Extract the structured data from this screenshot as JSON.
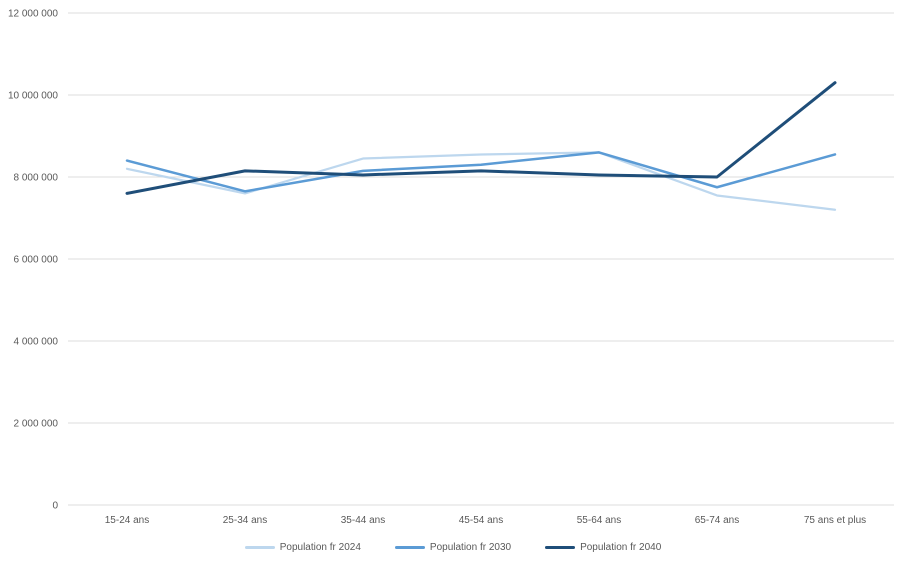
{
  "chart_data": {
    "type": "line",
    "title": "",
    "xlabel": "",
    "ylabel": "",
    "categories": [
      "15-24 ans",
      "25-34 ans",
      "35-44 ans",
      "45-54 ans",
      "55-64 ans",
      "65-74 ans",
      "75 ans et plus"
    ],
    "series": [
      {
        "name": "Population fr 2024",
        "color": "#BDD7EE",
        "values": [
          8200000,
          7600000,
          8450000,
          8550000,
          8600000,
          7550000,
          7200000
        ]
      },
      {
        "name": "Population fr 2030",
        "color": "#5B9BD5",
        "values": [
          8400000,
          7650000,
          8150000,
          8300000,
          8600000,
          7750000,
          8550000
        ]
      },
      {
        "name": "Population fr 2040",
        "color": "#1F4E79",
        "values": [
          7600000,
          8150000,
          8050000,
          8150000,
          8050000,
          8000000,
          10300000
        ]
      }
    ],
    "ylim": [
      0,
      12000000
    ],
    "ytick_interval": 2000000,
    "ytick_labels": [
      "0",
      "2 000 000",
      "4 000 000",
      "6 000 000",
      "8 000 000",
      "10 000 000",
      "12 000 000"
    ],
    "grid": true,
    "gridline_color": "#DCDCDC",
    "axis_text_color": "#595959",
    "legend_position": "bottom"
  }
}
